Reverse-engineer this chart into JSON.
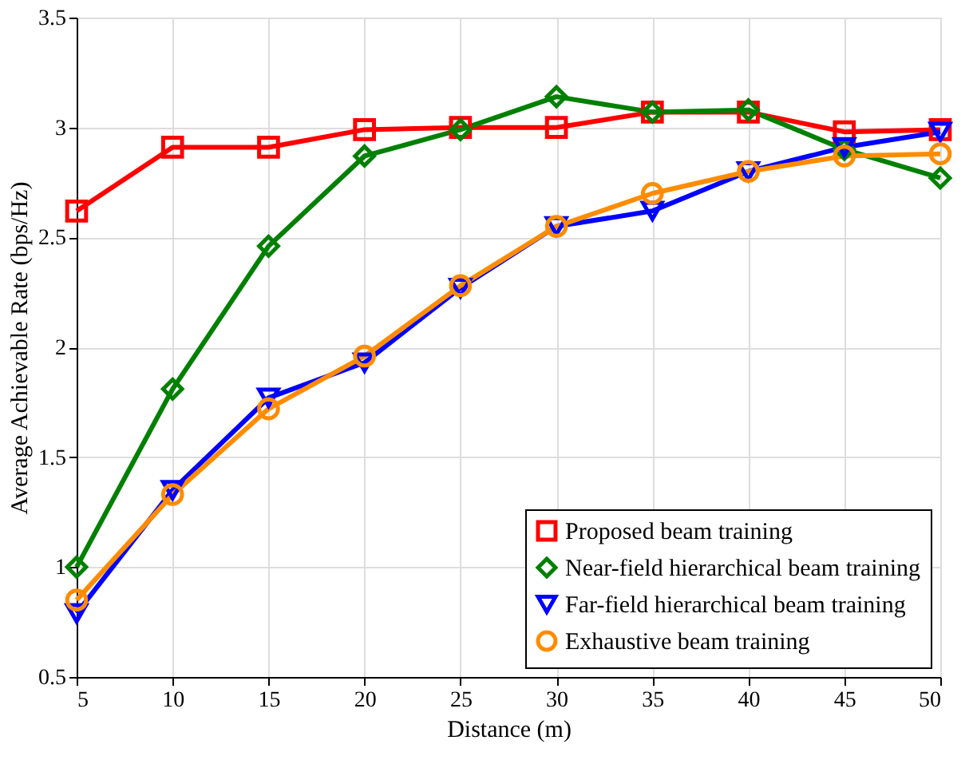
{
  "chart_data": {
    "type": "line",
    "xlabel": "Distance (m)",
    "ylabel": "Average Achievable Rate (bps/Hz)",
    "x": [
      5,
      10,
      15,
      20,
      25,
      30,
      35,
      40,
      45,
      50
    ],
    "xlim": [
      5,
      50
    ],
    "xticks": [
      5,
      10,
      15,
      20,
      25,
      30,
      35,
      40,
      45,
      50
    ],
    "ylim": [
      0.5,
      3.5
    ],
    "yticks": [
      0.5,
      1,
      1.5,
      2,
      2.5,
      3,
      3.5
    ],
    "grid": true,
    "legend": "bottom right",
    "line_style": "solid",
    "series": [
      {
        "name": "Proposed beam training",
        "color": "#ff0000",
        "marker": "square",
        "values": [
          2.62,
          2.91,
          2.91,
          2.99,
          3.0,
          3.0,
          3.07,
          3.07,
          2.98,
          2.99
        ]
      },
      {
        "name": "Near-field hierarchical beam training",
        "color": "#008000",
        "marker": "diamond",
        "values": [
          1.0,
          1.81,
          2.46,
          2.87,
          2.99,
          3.14,
          3.07,
          3.08,
          2.9,
          2.77
        ]
      },
      {
        "name": "Far-field hierarchical beam training",
        "color": "#0000ff",
        "marker": "triangle",
        "values": [
          0.79,
          1.35,
          1.77,
          1.93,
          2.27,
          2.55,
          2.62,
          2.8,
          2.91,
          2.98
        ]
      },
      {
        "name": "Exhaustive beam training",
        "color": "#ff8c00",
        "marker": "circle",
        "values": [
          0.85,
          1.33,
          1.72,
          1.96,
          2.28,
          2.55,
          2.7,
          2.8,
          2.87,
          2.88
        ]
      }
    ]
  }
}
